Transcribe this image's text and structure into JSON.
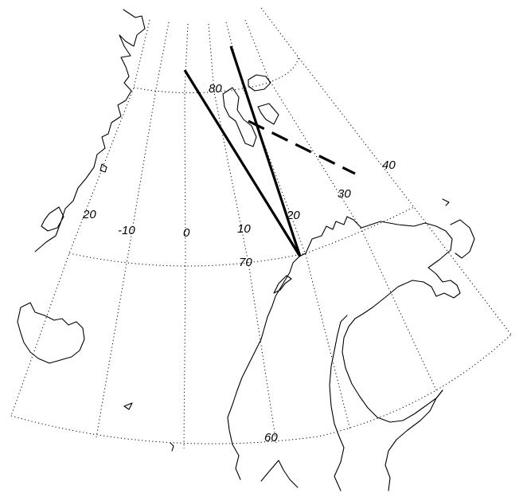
{
  "map": {
    "projection": "polar stereographic",
    "graticule_style": "dotted",
    "meridian_labels": [
      {
        "id": "lon-w20",
        "text": "20"
      },
      {
        "id": "lon-w10",
        "text": "-10"
      },
      {
        "id": "lon-0",
        "text": "0"
      },
      {
        "id": "lon-e10",
        "text": "10"
      },
      {
        "id": "lon-e20",
        "text": "20"
      },
      {
        "id": "lon-e30",
        "text": "30"
      },
      {
        "id": "lon-e40",
        "text": "40"
      }
    ],
    "parallel_labels": [
      {
        "id": "lat-80",
        "text": "80"
      },
      {
        "id": "lat-70",
        "text": "70"
      },
      {
        "id": "lat-60",
        "text": "60"
      }
    ],
    "beams": [
      {
        "id": "beam-1",
        "style": "solid"
      },
      {
        "id": "beam-2",
        "style": "solid"
      },
      {
        "id": "beam-3",
        "style": "dashed"
      }
    ],
    "line_color": "#000000",
    "background_color": "#ffffff"
  }
}
